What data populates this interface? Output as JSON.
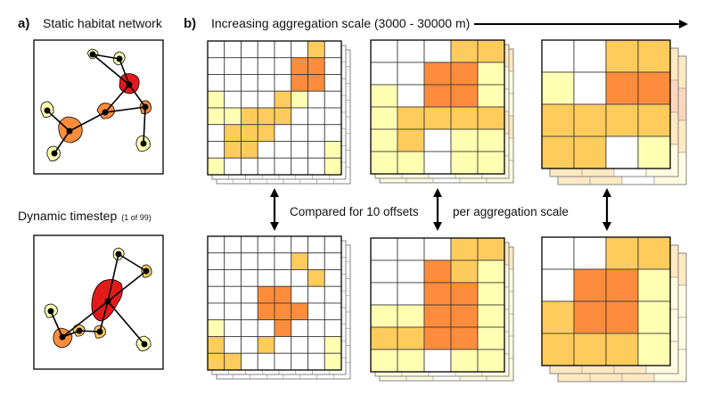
{
  "panel_a": {
    "letter": "a)",
    "title": "Static habitat network",
    "dynamic_title": "Dynamic timestep",
    "dynamic_note": "(1 of 99)"
  },
  "panel_b": {
    "letter": "b)",
    "title": "Increasing aggregation scale (3000 - 30000 m)",
    "compared_label": "Compared for 10 offsets",
    "per_scale_label": "per aggregation scale"
  },
  "colors": {
    "white": "#ffffff",
    "pale": "#ffffb2",
    "light": "#fecc5c",
    "orange": "#fd8d3c",
    "red": "#e31a1c",
    "grid_line": "#333333"
  },
  "grids": [
    {
      "id": "fine-static",
      "cells": [
        "00000020",
        "00000330",
        "00000330",
        "10002100",
        "11222000",
        "02220000",
        "02200001",
        "10000001"
      ]
    },
    {
      "id": "fine-dynamic",
      "cells": [
        "00000000",
        "00000200",
        "00000020",
        "00033000",
        "00033300",
        "10003000",
        "20020001",
        "22000001"
      ]
    },
    {
      "id": "medium-static",
      "cells": [
        "00022",
        "00331",
        "10331",
        "12222",
        "12011",
        "11011"
      ]
    },
    {
      "id": "medium-dynamic",
      "cells": [
        "00022",
        "00321",
        "00331",
        "11331",
        "22331",
        "11011"
      ]
    },
    {
      "id": "coarse-static",
      "cells": [
        "0022",
        "1033",
        "2222",
        "2201"
      ]
    },
    {
      "id": "coarse-dynamic",
      "cells": [
        "0022",
        "0331",
        "2331",
        "2221"
      ]
    }
  ]
}
